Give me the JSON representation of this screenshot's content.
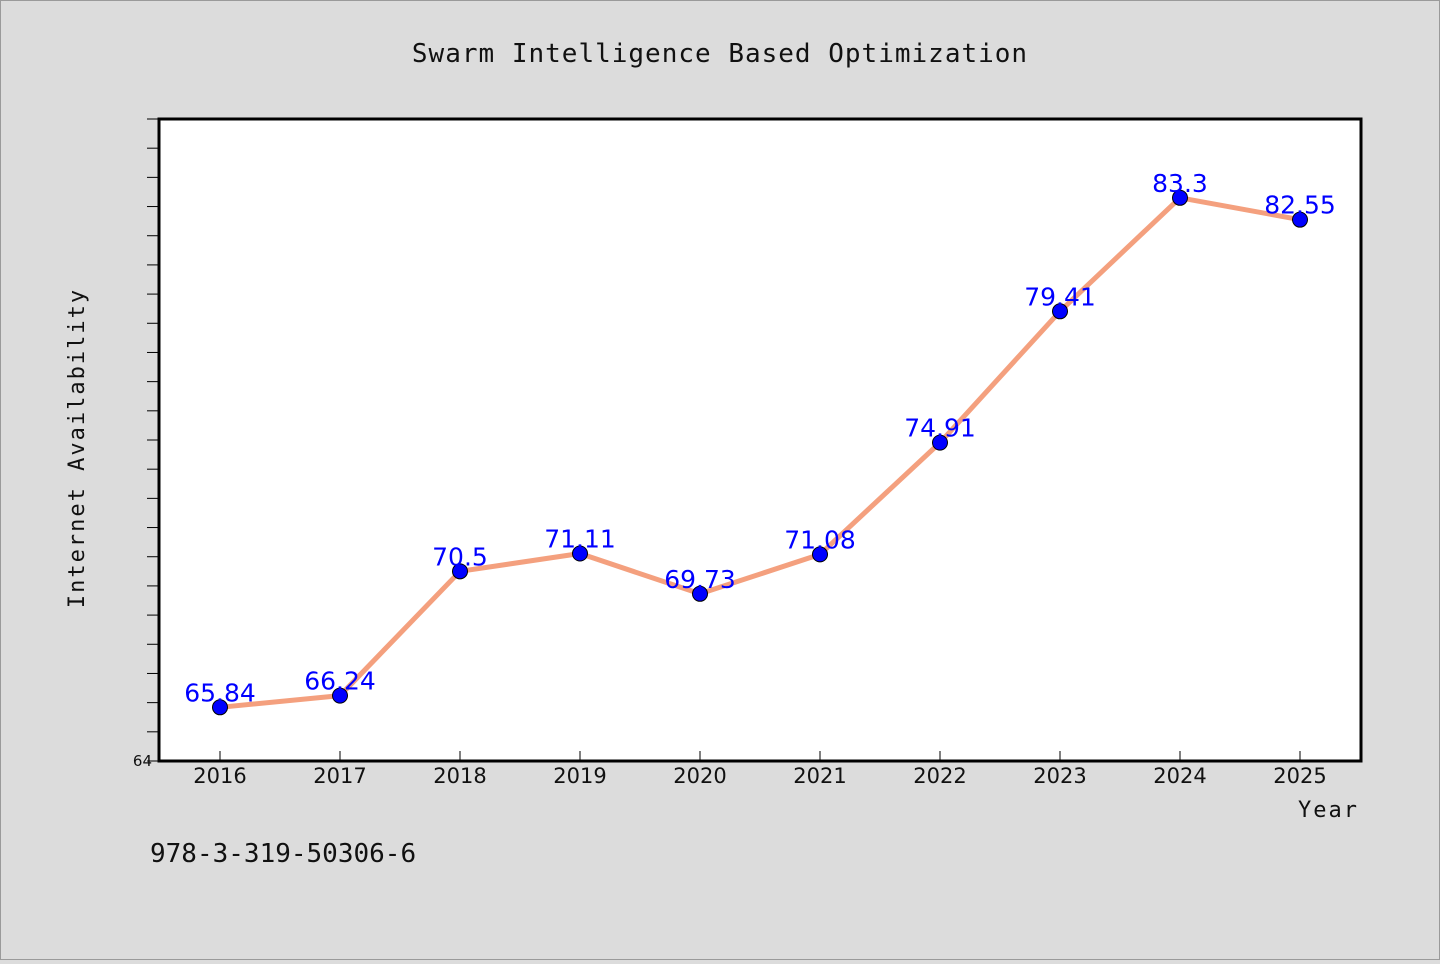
{
  "chart_data": {
    "type": "line",
    "title": "Swarm Intelligence Based Optimization",
    "xlabel": "Year",
    "ylabel": "Internet Availability",
    "x": [
      "2016",
      "2017",
      "2018",
      "2019",
      "2020",
      "2021",
      "2022",
      "2023",
      "2024",
      "2025"
    ],
    "series": [
      {
        "values": [
          65.84,
          66.24,
          70.5,
          71.11,
          69.73,
          71.08,
          74.91,
          79.41,
          83.3,
          82.55
        ],
        "labels": [
          "65.84",
          "66.24",
          "70.5",
          "71.11",
          "69.73",
          "71.08",
          "74.91",
          "79.41",
          "83.3",
          "82.55"
        ],
        "line_color": "#f4a07e",
        "marker_color": "#0000ff"
      }
    ],
    "ylim": [
      64,
      86
    ],
    "y_tick_labels": [
      "64"
    ],
    "grid": false,
    "legend": "none"
  },
  "footer": {
    "isbn": "978-3-319-50306-6"
  }
}
